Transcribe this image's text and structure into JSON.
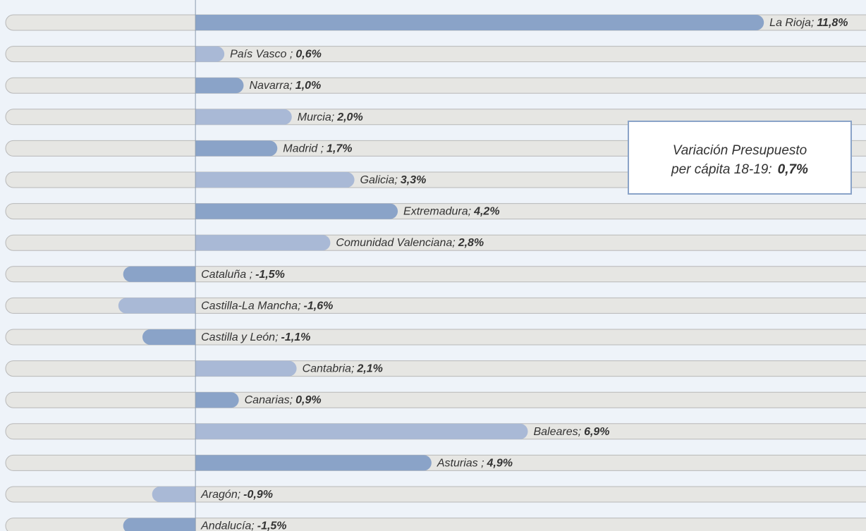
{
  "chart_data": {
    "type": "hbar",
    "categories": [
      "La Rioja;",
      "País Vasco ;",
      "Navarra;",
      "Murcia;",
      "Madrid ;",
      "Galicia;",
      "Extremadura;",
      "Comunidad Valenciana;",
      "Cataluña ;",
      "Castilla-La Mancha;",
      "Castilla y León;",
      "Cantabria;",
      "Canarias;",
      "Baleares;",
      "Asturias ;",
      "Aragón;",
      "Andalucía;"
    ],
    "values": [
      11.8,
      0.6,
      1.0,
      2.0,
      1.7,
      3.3,
      4.2,
      2.8,
      -1.5,
      -1.6,
      -1.1,
      2.1,
      0.9,
      6.9,
      4.9,
      -0.9,
      -1.5
    ],
    "value_labels": [
      "11,8%",
      "0,6%",
      "1,0%",
      "2,0%",
      "1,7%",
      "3,3%",
      "4,2%",
      "2,8%",
      "-1,5%",
      "-1,6%",
      "-1,1%",
      "2,1%",
      "0,9%",
      "6,9%",
      "4,9%",
      "-0,9%",
      "-1,5%"
    ],
    "colors": [
      "#8aa3c8",
      "#a9b9d6",
      "#8aa3c8",
      "#a9b9d6",
      "#8aa3c8",
      "#a9b9d6",
      "#8aa3c8",
      "#a9b9d6",
      "#8aa3c8",
      "#a9b9d6",
      "#8aa3c8",
      "#a9b9d6",
      "#8aa3c8",
      "#a9b9d6",
      "#8aa3c8",
      "#a9b9d6",
      "#8aa3c8"
    ],
    "xlim": [
      -3.94,
      13.92
    ],
    "annotation": {
      "lines": [
        "Variación Presupuesto",
        "per cápita 18-19:"
      ],
      "value_label": "0,7%"
    }
  }
}
